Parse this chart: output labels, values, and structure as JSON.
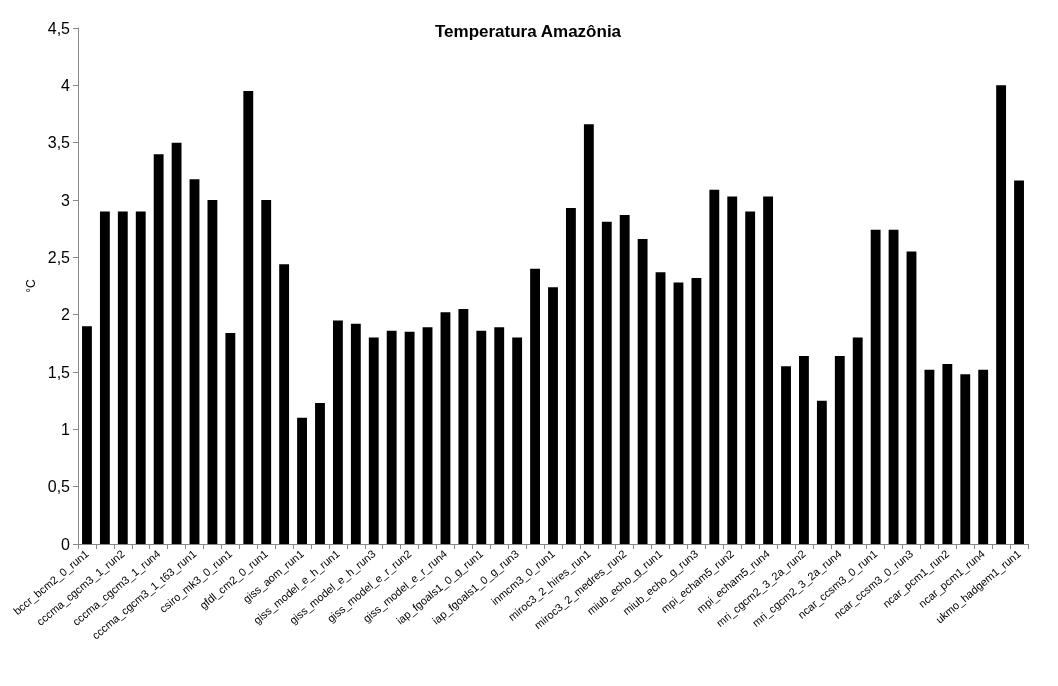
{
  "chart_data": {
    "type": "bar",
    "title": "Temperatura Amazônia",
    "ylabel": "°C",
    "categories": [
      "bccr_bcm2_0_run1",
      null,
      "cccma_cgcm3_1_run2",
      null,
      "cccma_cgcm3_1_run4",
      null,
      "cccma_cgcm3_1_t63_run1",
      null,
      "csiro_mk3_0_run1",
      null,
      "gfdl_cm2_0_run1",
      null,
      "giss_aom_run1",
      null,
      "giss_model_e_h_run1",
      null,
      "giss_model_e_h_run3",
      null,
      "giss_model_e_r_run2",
      null,
      "giss_model_e_r_run4",
      null,
      "iap_fgoals1_0_g_run1",
      null,
      "iap_fgoals1_0_g_run3",
      null,
      "inmcm3_0_run1",
      null,
      "miroc3_2_hires_run1",
      null,
      "miroc3_2_medres_run2",
      null,
      "miub_echo_g_run1",
      null,
      "miub_echo_g_run3",
      null,
      "mpi_echam5_run2",
      null,
      "mpi_echam5_run4",
      null,
      "mri_cgcm2_3_2a_run2",
      null,
      "mri_cgcm2_3_2a_run4",
      null,
      "ncar_ccsm3_0_run1",
      null,
      "ncar_ccsm3_0_run3",
      null,
      "ncar_pcm1_run2",
      null,
      "ncar_pcm1_run4",
      null,
      "ukmo_hadgem1_run1"
    ],
    "values": [
      1.9,
      2.9,
      2.9,
      2.9,
      3.4,
      3.5,
      3.18,
      3.0,
      1.84,
      3.95,
      3.0,
      2.44,
      1.1,
      1.23,
      1.95,
      1.92,
      1.8,
      1.86,
      1.85,
      1.89,
      2.02,
      2.05,
      1.86,
      1.89,
      1.8,
      2.4,
      2.24,
      2.93,
      3.66,
      2.81,
      2.87,
      2.66,
      2.37,
      2.28,
      2.32,
      3.09,
      3.03,
      2.9,
      3.03,
      1.55,
      1.64,
      1.25,
      1.64,
      1.8,
      2.74,
      2.74,
      2.55,
      1.52,
      1.57,
      1.48,
      1.52,
      4.0,
      3.17
    ],
    "color": "#000000",
    "ylim": [
      0,
      4.5
    ],
    "yticks": [
      0,
      {
        "value": 0.5,
        "label": "0,5"
      },
      1,
      {
        "value": 1.5,
        "label": "1,5"
      },
      2,
      {
        "value": 2.5,
        "label": "2,5"
      },
      3,
      {
        "value": 3.5,
        "label": "3,5"
      },
      4,
      {
        "value": 4.5,
        "label": "4,5"
      }
    ],
    "grid": false
  }
}
